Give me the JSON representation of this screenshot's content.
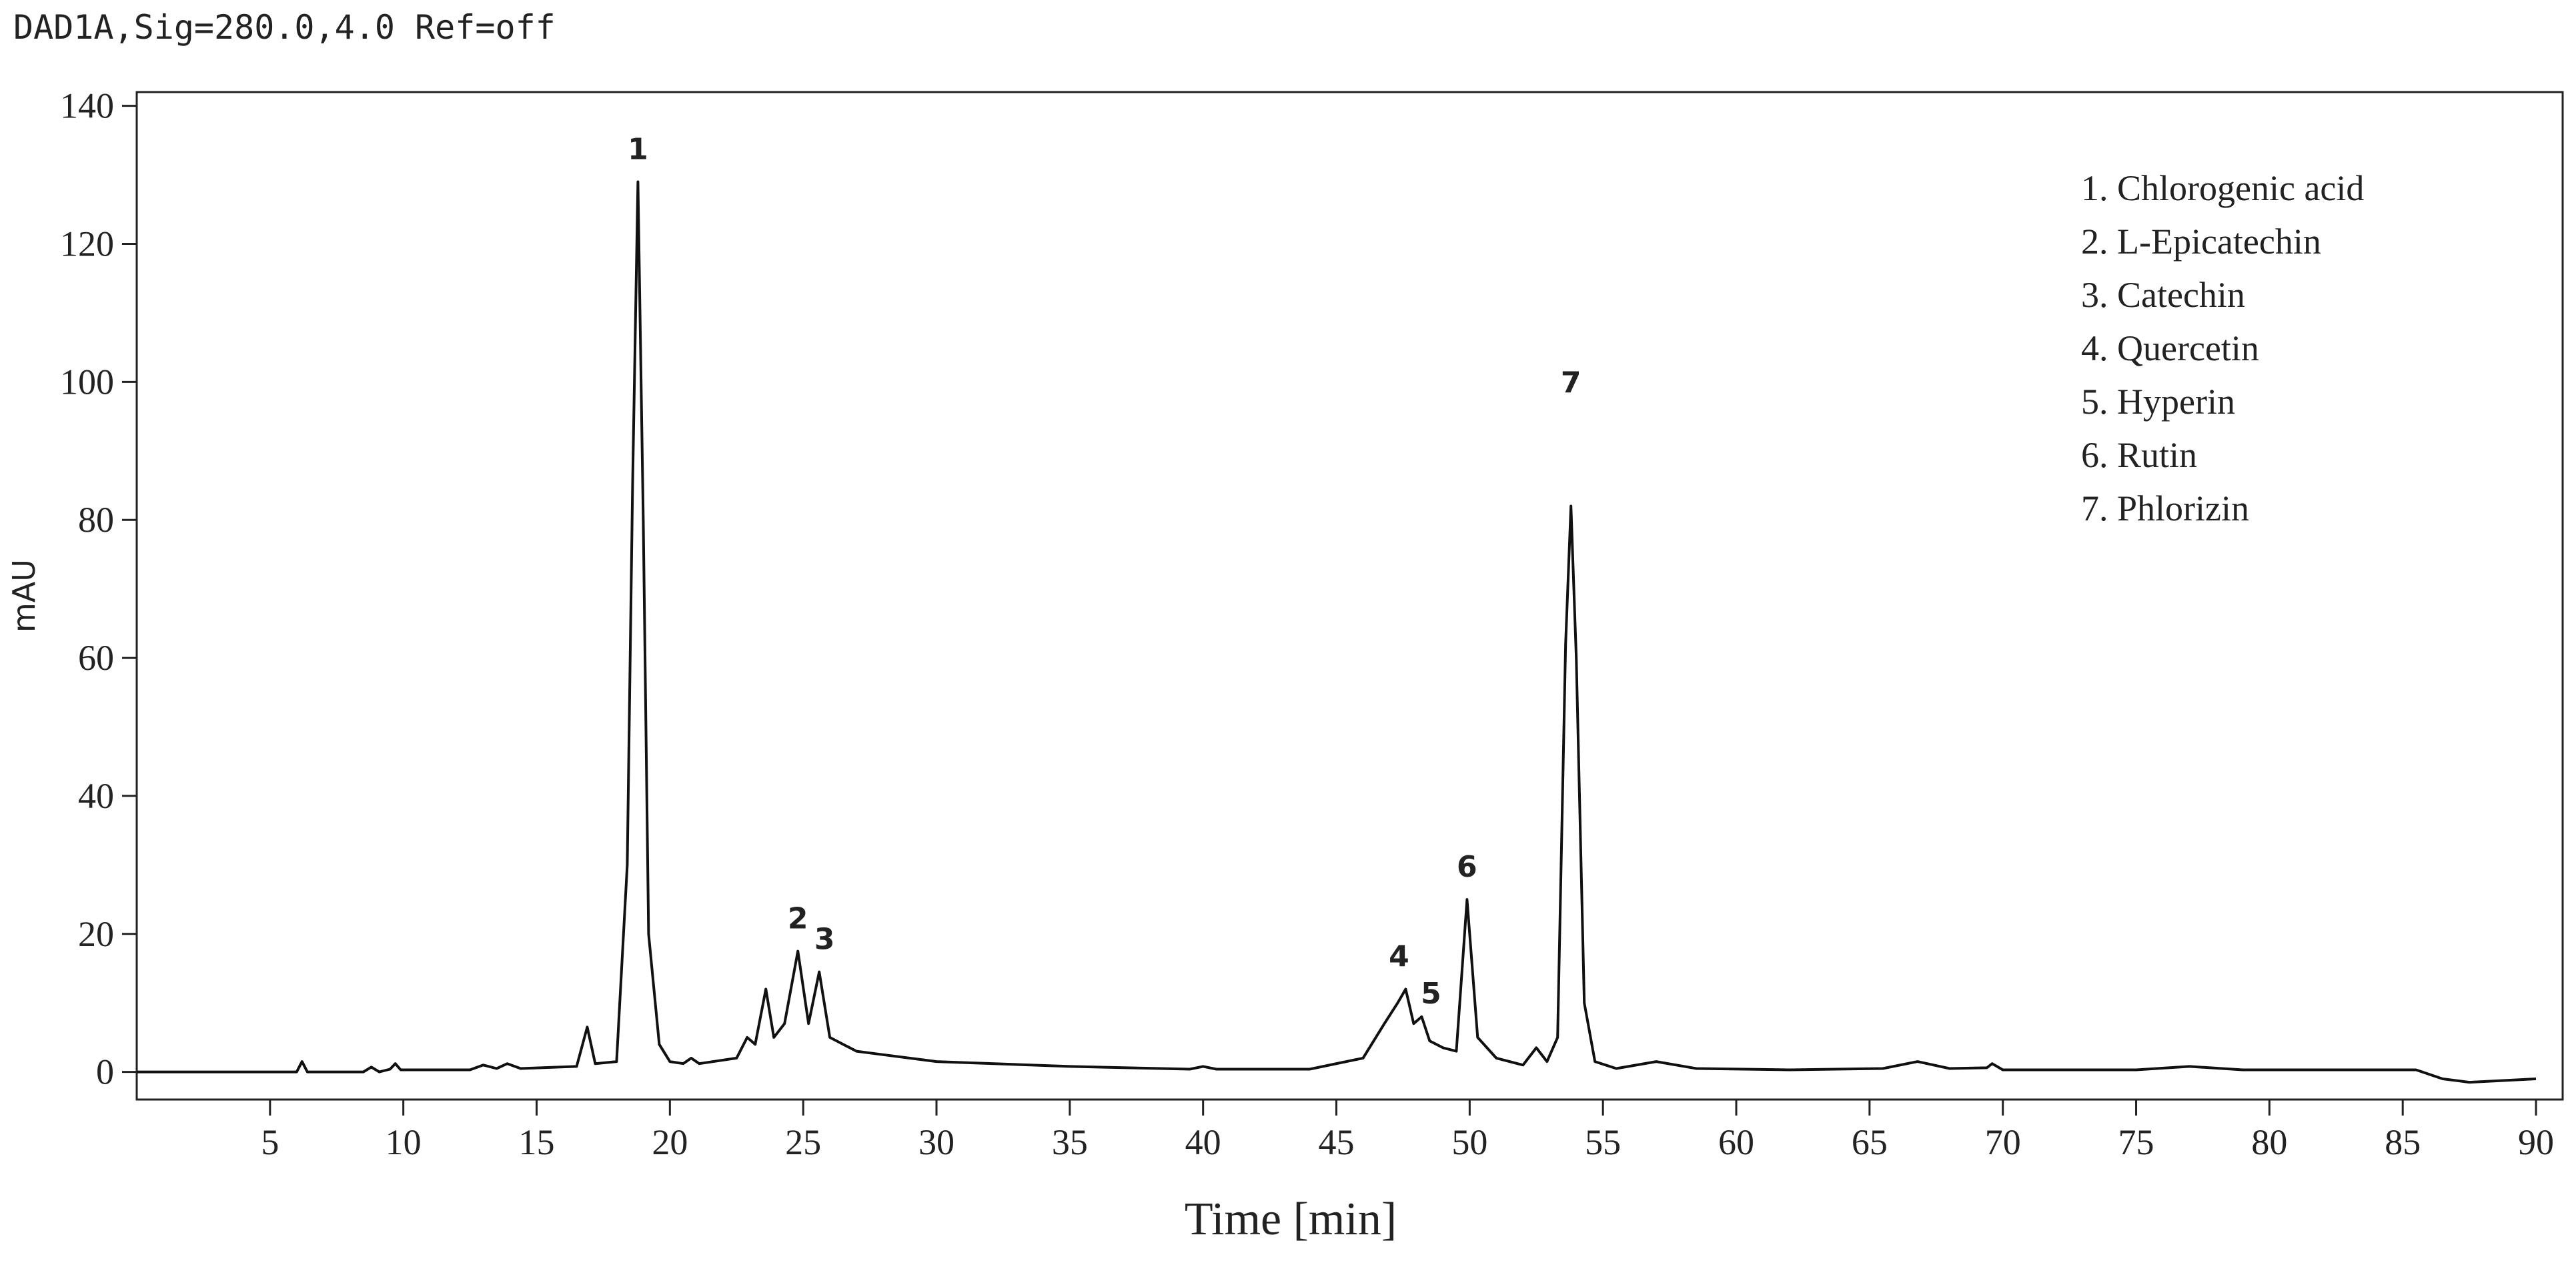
{
  "chart_data": {
    "type": "line",
    "header": "DAD1A,Sig=280.0,4.0 Ref=off",
    "title": "",
    "xlabel": "Time [min]",
    "ylabel": "mAU",
    "xlim": [
      0,
      91
    ],
    "ylim": [
      -4,
      142
    ],
    "xticks": [
      5,
      10,
      15,
      20,
      25,
      30,
      35,
      40,
      45,
      50,
      55,
      60,
      65,
      70,
      75,
      80,
      85,
      90
    ],
    "yticks": [
      0,
      20,
      40,
      60,
      80,
      100,
      120,
      140
    ],
    "grid": false,
    "legend_position": "top-right",
    "legend": [
      "1. Chlorogenic  acid",
      "2. L-Epicatechin",
      "3. Catechin",
      "4. Quercetin",
      "5. Hyperin",
      "6. Rutin",
      "7. Phlorizin"
    ],
    "peaks": [
      {
        "label": "1",
        "x": 18.8,
        "y": 129
      },
      {
        "label": "2",
        "x": 24.8,
        "y": 17.5
      },
      {
        "label": "3",
        "x": 25.6,
        "y": 14.5
      },
      {
        "label": "4",
        "x": 47.6,
        "y": 12
      },
      {
        "label": "5",
        "x": 48.2,
        "y": 8
      },
      {
        "label": "6",
        "x": 49.9,
        "y": 25
      },
      {
        "label": "7",
        "x": 53.8,
        "y": 82
      }
    ],
    "series": [
      {
        "x": [
          0,
          6.0,
          6.2,
          6.4,
          8.5,
          8.8,
          9.1,
          9.5,
          9.7,
          9.9,
          12.5,
          13.0,
          13.5,
          13.9,
          14.4,
          16.5,
          16.9,
          17.2,
          18.0,
          18.4,
          18.6,
          18.8,
          19.0,
          19.2,
          19.6,
          20.0,
          20.5,
          20.8,
          21.1,
          22.5,
          22.9,
          23.2,
          23.6,
          23.9,
          24.3,
          24.8,
          25.2,
          25.6,
          26.0,
          27.0,
          28.0,
          30.0,
          35.0,
          39.5,
          40.0,
          40.5,
          44.0,
          46.0,
          46.8,
          47.3,
          47.6,
          47.9,
          48.2,
          48.5,
          49.0,
          49.5,
          49.9,
          50.3,
          51.0,
          52.0,
          52.5,
          52.9,
          53.3,
          53.6,
          53.8,
          54.0,
          54.3,
          54.7,
          55.5,
          57.0,
          58.5,
          62.0,
          65.5,
          66.8,
          68.0,
          69.4,
          69.6,
          70.0,
          75.0,
          77.0,
          79.0,
          85.5,
          86.5,
          87.5,
          90.0
        ],
        "y": [
          0,
          0,
          1.5,
          0,
          0,
          0.7,
          0,
          0.4,
          1.2,
          0.3,
          0.3,
          1.0,
          0.5,
          1.2,
          0.5,
          0.8,
          6.5,
          1.2,
          1.5,
          30,
          85,
          129,
          80,
          20,
          4,
          1.5,
          1.2,
          2.0,
          1.2,
          2.0,
          5.0,
          4.0,
          12,
          5.0,
          7.0,
          17.5,
          7.0,
          14.5,
          5.0,
          3.0,
          2.5,
          1.5,
          0.8,
          0.4,
          0.8,
          0.4,
          0.4,
          2.0,
          7.0,
          10.0,
          12.0,
          7.0,
          8.0,
          4.5,
          3.5,
          3.0,
          25,
          5.0,
          2.0,
          1.0,
          3.5,
          1.5,
          5.0,
          62,
          82,
          60,
          10,
          1.5,
          0.5,
          1.5,
          0.5,
          0.3,
          0.5,
          1.5,
          0.5,
          0.6,
          1.2,
          0.3,
          0.3,
          0.8,
          0.3,
          0.3,
          -1.0,
          -1.5,
          -1.0
        ]
      }
    ]
  }
}
